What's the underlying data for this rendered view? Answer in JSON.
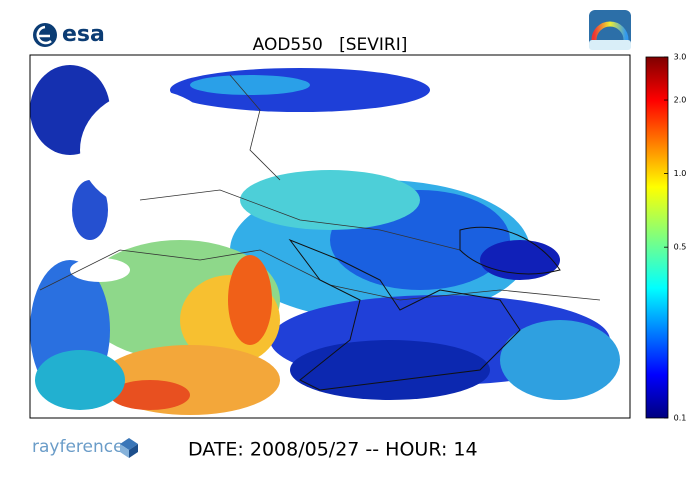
{
  "header": {
    "logo": "esa",
    "title": "AOD550   [SEVIRI]"
  },
  "colorbar": {
    "scale": "log",
    "lim": [
      0.1,
      3.0
    ],
    "ticks": [
      {
        "value": 3.0,
        "label": "3.0"
      },
      {
        "value": 2.0,
        "label": "2.0"
      },
      {
        "value": 1.0,
        "label": "1.0"
      },
      0.5,
      0.1
    ]
  },
  "footer": {
    "brand": "rayference",
    "date": "DATE: 2008/05/27 -- HOUR: 14"
  }
}
